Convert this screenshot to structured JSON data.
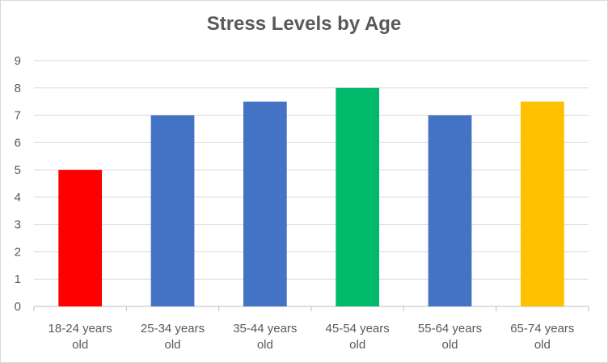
{
  "chart_data": {
    "type": "bar",
    "title": "Stress Levels by Age",
    "xlabel": "",
    "ylabel": "",
    "categories": [
      [
        "18-24 years",
        "old"
      ],
      [
        "25-34 years",
        "old"
      ],
      [
        "35-44 years",
        "old"
      ],
      [
        "45-54 years",
        "old"
      ],
      [
        "55-64 years",
        "old"
      ],
      [
        "65-74 years",
        "old"
      ]
    ],
    "values": [
      5,
      7,
      7.5,
      8,
      7,
      7.5
    ],
    "colors": [
      "#ff0000",
      "#4472c4",
      "#4472c4",
      "#00b96b",
      "#4472c4",
      "#ffc000"
    ],
    "ylim": [
      0,
      9
    ],
    "yticks": [
      "0",
      "1",
      "2",
      "3",
      "4",
      "5",
      "6",
      "7",
      "8",
      "9"
    ],
    "grid": true,
    "legend": "none"
  }
}
